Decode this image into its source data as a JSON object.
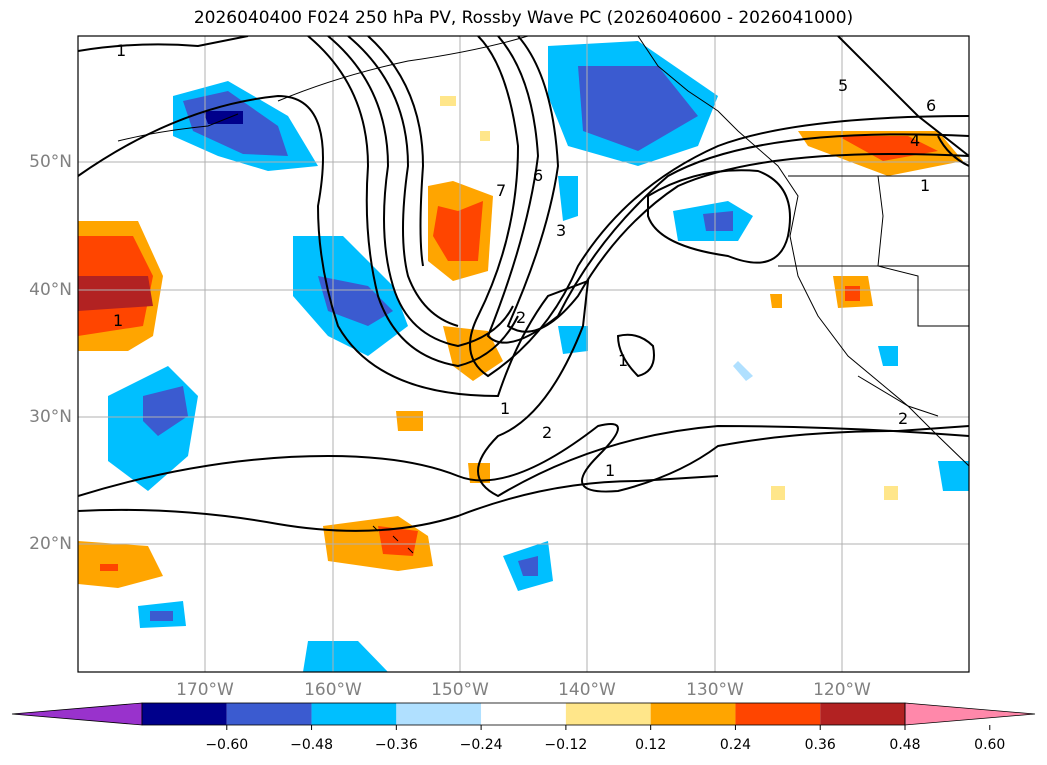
{
  "title": "2026040400 F024 250 hPa PV, Rossby Wave PC (2026040600 - 2026041000)",
  "lat_labels": [
    "50°N",
    "40°N",
    "30°N",
    "20°N"
  ],
  "lon_labels": [
    "170°W",
    "160°W",
    "150°W",
    "140°W",
    "130°W",
    "120°W"
  ],
  "contour_labels": [
    "1",
    "7",
    "6",
    "5",
    "6",
    "4",
    "1",
    "3",
    "2",
    "1",
    "1",
    "2",
    "1",
    "1",
    "2"
  ],
  "colorbar": {
    "ticks": [
      "−0.60",
      "−0.48",
      "−0.36",
      "−0.24",
      "−0.12",
      "0.12",
      "0.24",
      "0.36",
      "0.48",
      "0.60"
    ],
    "colors": [
      "#9932cc",
      "#00008b",
      "#3b5bd0",
      "#00bfff",
      "#b0e0ff",
      "#ffffff",
      "#ffe68a",
      "#ffa500",
      "#ff4500",
      "#b22222",
      "#ff88aa"
    ]
  }
}
